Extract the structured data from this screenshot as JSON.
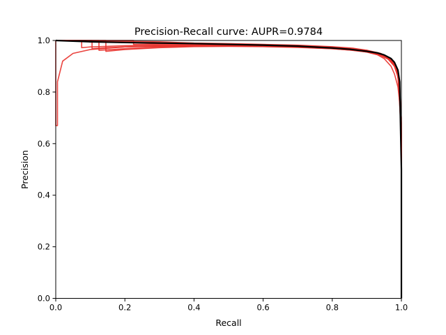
{
  "chart_data": {
    "type": "line",
    "title": "Precision-Recall curve: AUPR=0.9784",
    "xlabel": "Recall",
    "ylabel": "Precision",
    "xlim": [
      0.0,
      1.0
    ],
    "ylim": [
      0.0,
      1.0
    ],
    "xticks": [
      "0.0",
      "0.2",
      "0.4",
      "0.6",
      "0.8",
      "1.0"
    ],
    "yticks": [
      "0.0",
      "0.2",
      "0.4",
      "0.6",
      "0.8",
      "1.0"
    ],
    "grid": false,
    "legend": "none",
    "colors": {
      "folds": "#e8302a",
      "mean": "#000000"
    },
    "series": [
      {
        "role": "fold",
        "x": [
          0.0,
          0.0,
          0.005,
          0.005,
          0.02,
          0.05,
          0.1,
          0.2,
          0.3,
          0.4,
          0.5,
          0.6,
          0.7,
          0.8,
          0.85,
          0.9,
          0.93,
          0.95,
          0.97,
          0.98,
          0.99,
          0.995,
          1.0,
          1.0
        ],
        "y": [
          1.0,
          0.67,
          0.67,
          0.84,
          0.92,
          0.95,
          0.965,
          0.975,
          0.978,
          0.979,
          0.978,
          0.977,
          0.974,
          0.968,
          0.963,
          0.955,
          0.945,
          0.93,
          0.9,
          0.87,
          0.82,
          0.76,
          0.6,
          0.0
        ]
      },
      {
        "role": "fold",
        "x": [
          0.0,
          0.075,
          0.075,
          0.1,
          0.2,
          0.3,
          0.4,
          0.5,
          0.6,
          0.7,
          0.8,
          0.85,
          0.9,
          0.94,
          0.96,
          0.98,
          0.99,
          1.0,
          1.0
        ],
        "y": [
          1.0,
          1.0,
          0.972,
          0.975,
          0.98,
          0.982,
          0.983,
          0.982,
          0.98,
          0.976,
          0.97,
          0.965,
          0.958,
          0.945,
          0.93,
          0.9,
          0.86,
          0.7,
          0.0
        ]
      },
      {
        "role": "fold",
        "x": [
          0.0,
          0.105,
          0.105,
          0.15,
          0.25,
          0.35,
          0.45,
          0.55,
          0.65,
          0.75,
          0.82,
          0.88,
          0.92,
          0.95,
          0.97,
          0.985,
          0.995,
          1.0,
          1.0
        ],
        "y": [
          1.0,
          1.0,
          0.968,
          0.972,
          0.978,
          0.98,
          0.981,
          0.98,
          0.978,
          0.974,
          0.969,
          0.962,
          0.952,
          0.94,
          0.92,
          0.89,
          0.82,
          0.65,
          0.0
        ]
      },
      {
        "role": "fold",
        "x": [
          0.0,
          0.125,
          0.125,
          0.2,
          0.3,
          0.4,
          0.5,
          0.6,
          0.7,
          0.78,
          0.85,
          0.9,
          0.94,
          0.97,
          0.985,
          0.995,
          1.0,
          1.0
        ],
        "y": [
          1.0,
          1.0,
          0.962,
          0.968,
          0.975,
          0.978,
          0.979,
          0.978,
          0.975,
          0.971,
          0.965,
          0.957,
          0.945,
          0.925,
          0.9,
          0.84,
          0.62,
          0.0
        ]
      },
      {
        "role": "fold",
        "x": [
          0.0,
          0.145,
          0.145,
          0.2,
          0.3,
          0.4,
          0.5,
          0.6,
          0.7,
          0.8,
          0.86,
          0.9,
          0.94,
          0.965,
          0.98,
          0.99,
          1.0,
          1.0
        ],
        "y": [
          1.0,
          1.0,
          0.958,
          0.965,
          0.972,
          0.976,
          0.977,
          0.976,
          0.973,
          0.968,
          0.962,
          0.955,
          0.942,
          0.925,
          0.9,
          0.86,
          0.64,
          0.0
        ]
      },
      {
        "role": "fold",
        "x": [
          0.0,
          0.225,
          0.225,
          0.3,
          0.4,
          0.5,
          0.6,
          0.7,
          0.78,
          0.85,
          0.9,
          0.93,
          0.96,
          0.98,
          0.99,
          1.0,
          1.0
        ],
        "y": [
          1.0,
          1.0,
          0.985,
          0.986,
          0.986,
          0.985,
          0.983,
          0.98,
          0.976,
          0.97,
          0.962,
          0.952,
          0.935,
          0.91,
          0.87,
          0.68,
          0.0
        ]
      },
      {
        "role": "fold",
        "x": [
          0.0,
          0.3,
          0.4,
          0.5,
          0.6,
          0.7,
          0.8,
          0.86,
          0.9,
          0.94,
          0.96,
          0.975,
          0.985,
          0.995,
          1.0,
          1.0
        ],
        "y": [
          1.0,
          0.995,
          0.99,
          0.988,
          0.985,
          0.982,
          0.976,
          0.97,
          0.962,
          0.95,
          0.935,
          0.915,
          0.89,
          0.83,
          0.57,
          0.0
        ]
      },
      {
        "role": "mean",
        "x": [
          0.0,
          0.1,
          0.2,
          0.3,
          0.4,
          0.5,
          0.6,
          0.7,
          0.8,
          0.85,
          0.9,
          0.93,
          0.95,
          0.97,
          0.98,
          0.99,
          0.995,
          1.0,
          1.0
        ],
        "y": [
          1.0,
          0.995,
          0.992,
          0.99,
          0.988,
          0.985,
          0.982,
          0.978,
          0.971,
          0.966,
          0.958,
          0.952,
          0.944,
          0.93,
          0.915,
          0.885,
          0.84,
          0.5,
          0.0
        ]
      }
    ]
  }
}
